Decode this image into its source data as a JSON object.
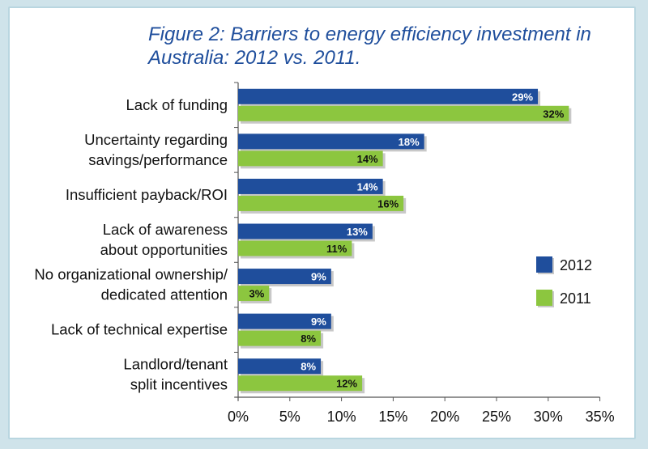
{
  "chart_data": {
    "type": "bar",
    "orientation": "horizontal",
    "title": "Figure 2: Barriers to energy efficiency investment in Australia: 2012 vs. 2011.",
    "categories": [
      "Lack of funding",
      "Uncertainty regarding savings/performance",
      "Insufficient payback/ROI",
      "Lack of awareness about opportunities",
      "No organizational ownership/ dedicated attention",
      "Lack of technical expertise",
      "Landlord/tenant split incentives"
    ],
    "category_lines": [
      [
        "Lack of funding"
      ],
      [
        "Uncertainty regarding",
        "savings/performance"
      ],
      [
        "Insufficient payback/ROI"
      ],
      [
        "Lack of awareness",
        "about opportunities"
      ],
      [
        "No organizational ownership/",
        "dedicated attention"
      ],
      [
        "Lack of technical expertise"
      ],
      [
        "Landlord/tenant",
        "split incentives"
      ]
    ],
    "series": [
      {
        "name": "2012",
        "color": "#1f4e9c",
        "values": [
          29,
          18,
          14,
          13,
          9,
          9,
          8
        ],
        "labels": [
          "29%",
          "18%",
          "14%",
          "13%",
          "9%",
          "9%",
          "8%"
        ]
      },
      {
        "name": "2011",
        "color": "#8cc63f",
        "values": [
          32,
          14,
          16,
          11,
          3,
          8,
          12
        ],
        "labels": [
          "32%",
          "14%",
          "16%",
          "11%",
          "3%",
          "8%",
          "12%"
        ]
      }
    ],
    "xlim": [
      0,
      35
    ],
    "xticks": [
      "0%",
      "5%",
      "10%",
      "15%",
      "20%",
      "25%",
      "30%",
      "35%"
    ],
    "legend_position": "right"
  }
}
